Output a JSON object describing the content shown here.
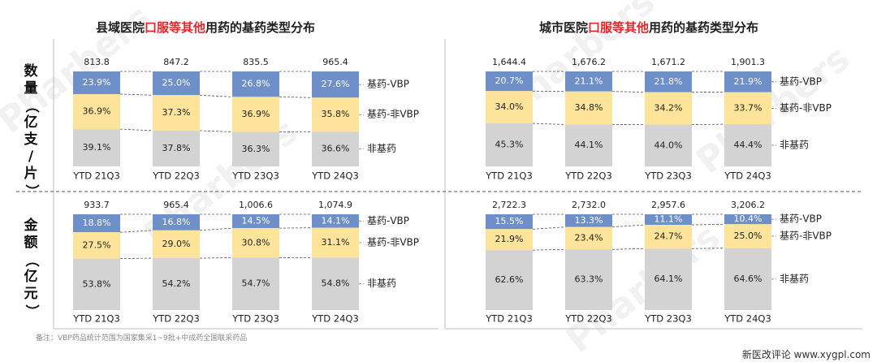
{
  "titles": {
    "left": {
      "pre": "县域医院",
      "hl": "口服等其他",
      "post": "用药的基药类型分布"
    },
    "right": {
      "pre": "城市医院",
      "hl": "口服等其他",
      "post": "用药的基药类型分布"
    }
  },
  "row_labels": {
    "volume": "数量（亿支/片）",
    "amount": "金额（亿元）"
  },
  "footnote": "备注：VBP药品统计范围为国家集采1~9批+中成药全国联采药品",
  "site": "新医改评论 www.xygpl.com",
  "brand": "Pharbers",
  "colors": {
    "vbp": "#6f8fc8",
    "nonvbp": "#fde49a",
    "nonbasic": "#d3d3d3"
  },
  "chart_data": [
    {
      "id": "county-volume",
      "type": "bar",
      "stacked": "percent",
      "categories": [
        "YTD 21Q3",
        "YTD 22Q3",
        "YTD 23Q3",
        "YTD 24Q3"
      ],
      "totals": [
        "813.8",
        "847.2",
        "835.5",
        "965.4"
      ],
      "series": [
        {
          "name": "基药-VBP",
          "values": [
            23.9,
            25.0,
            26.8,
            27.6
          ],
          "labels": [
            "23.9%",
            "25.0%",
            "26.8%",
            "27.6%"
          ]
        },
        {
          "name": "基药-非VBP",
          "values": [
            36.9,
            37.3,
            36.9,
            35.8
          ],
          "labels": [
            "36.9%",
            "37.3%",
            "36.9%",
            "35.8%"
          ]
        },
        {
          "name": "非基药",
          "values": [
            39.1,
            37.8,
            36.3,
            36.6
          ],
          "labels": [
            "39.1%",
            "37.8%",
            "36.3%",
            "36.6%"
          ]
        }
      ]
    },
    {
      "id": "city-volume",
      "type": "bar",
      "stacked": "percent",
      "categories": [
        "YTD 21Q3",
        "YTD 22Q3",
        "YTD 23Q3",
        "YTD 24Q3"
      ],
      "totals": [
        "1,644.4",
        "1,676.2",
        "1,671.2",
        "1,901.3"
      ],
      "series": [
        {
          "name": "基药-VBP",
          "values": [
            20.7,
            21.1,
            21.8,
            21.9
          ],
          "labels": [
            "20.7%",
            "21.1%",
            "21.8%",
            "21.9%"
          ]
        },
        {
          "name": "基药-非VBP",
          "values": [
            34.0,
            34.8,
            34.2,
            33.7
          ],
          "labels": [
            "34.0%",
            "34.8%",
            "34.2%",
            "33.7%"
          ]
        },
        {
          "name": "非基药",
          "values": [
            45.3,
            44.1,
            44.0,
            44.4
          ],
          "labels": [
            "45.3%",
            "44.1%",
            "44.0%",
            "44.4%"
          ]
        }
      ]
    },
    {
      "id": "county-amount",
      "type": "bar",
      "stacked": "percent",
      "categories": [
        "YTD 21Q3",
        "YTD 22Q3",
        "YTD 23Q3",
        "YTD 24Q3"
      ],
      "totals": [
        "933.7",
        "965.4",
        "1,006.6",
        "1,074.9"
      ],
      "series": [
        {
          "name": "基药-VBP",
          "values": [
            18.8,
            16.8,
            14.5,
            14.1
          ],
          "labels": [
            "18.8%",
            "16.8%",
            "14.5%",
            "14.1%"
          ]
        },
        {
          "name": "基药-非VBP",
          "values": [
            27.5,
            29.0,
            30.8,
            31.1
          ],
          "labels": [
            "27.5%",
            "29.0%",
            "30.8%",
            "31.1%"
          ]
        },
        {
          "name": "非基药",
          "values": [
            53.8,
            54.2,
            54.7,
            54.8
          ],
          "labels": [
            "53.8%",
            "54.2%",
            "54.7%",
            "54.8%"
          ]
        }
      ]
    },
    {
      "id": "city-amount",
      "type": "bar",
      "stacked": "percent",
      "categories": [
        "YTD 21Q3",
        "YTD 22Q3",
        "YTD 23Q3",
        "YTD 24Q3"
      ],
      "totals": [
        "2,722.3",
        "2,732.0",
        "2,957.6",
        "3,206.2"
      ],
      "series": [
        {
          "name": "基药-VBP",
          "values": [
            15.5,
            13.3,
            11.1,
            10.4
          ],
          "labels": [
            "15.5%",
            "13.3%",
            "11.1%",
            "10.4%"
          ]
        },
        {
          "name": "基药-非VBP",
          "values": [
            21.9,
            23.4,
            24.7,
            25.0
          ],
          "labels": [
            "21.9%",
            "23.4%",
            "24.7%",
            "25.0%"
          ]
        },
        {
          "name": "非基药",
          "values": [
            62.6,
            63.3,
            64.1,
            64.6
          ],
          "labels": [
            "62.6%",
            "63.3%",
            "64.1%",
            "64.6%"
          ]
        }
      ]
    }
  ]
}
